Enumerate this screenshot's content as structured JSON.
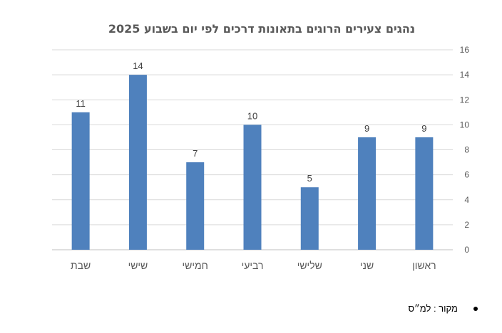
{
  "chart_data": {
    "type": "bar",
    "title": "נהגים צעירים הרוגים בתאונות דרכים לפי יום בשבוע 2025",
    "categories": [
      "ראשון",
      "שני",
      "שלישי",
      "רביעי",
      "חמישי",
      "שישי",
      "שבת"
    ],
    "values": [
      9,
      9,
      5,
      10,
      7,
      14,
      11
    ],
    "ylim": [
      0,
      16
    ],
    "yticks": [
      "0",
      "2",
      "4",
      "6",
      "8",
      "10",
      "12",
      "14",
      "16"
    ],
    "x_direction": "right-to-left",
    "y_axis_side": "right",
    "grid": true,
    "data_labels": true,
    "bar_color": "#4F81BD",
    "grid_color": "#D9D9D9"
  },
  "source_note": "מקור : למ״ס"
}
